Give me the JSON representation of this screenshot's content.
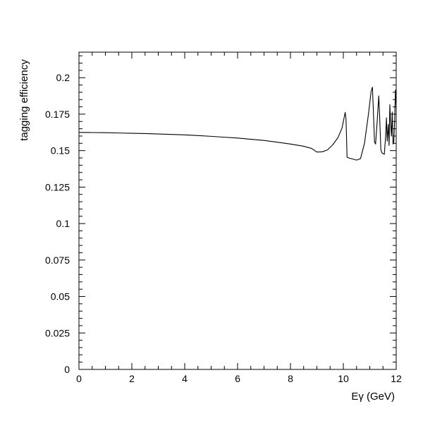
{
  "chart_data": {
    "type": "line",
    "title": "",
    "xlabel": "Eγ (GeV)",
    "ylabel": "tagging efficiency",
    "xlim": [
      0,
      12
    ],
    "ylim": [
      0,
      0.2175
    ],
    "grid": false,
    "x_ticks": [
      "0",
      "2",
      "4",
      "6",
      "8",
      "10",
      "12"
    ],
    "y_ticks": [
      "0",
      "0.025",
      "0.05",
      "0.075",
      "0.1",
      "0.125",
      "0.15",
      "0.175",
      "0.2"
    ],
    "series": [
      {
        "x": [
          0,
          0.5,
          1,
          1.5,
          2,
          2.5,
          3,
          3.5,
          4,
          4.5,
          5,
          5.5,
          6,
          6.5,
          7,
          7.5,
          8,
          8.5,
          8.8,
          9.0,
          9.2,
          9.4,
          9.6,
          9.8,
          9.95,
          10.07,
          10.1,
          10.12,
          10.14,
          10.17,
          10.3,
          10.5,
          10.65,
          10.8,
          10.95,
          11.05,
          11.1,
          11.13,
          11.18,
          11.22,
          11.28,
          11.34,
          11.37,
          11.42,
          11.46,
          11.5,
          11.55,
          11.6,
          11.63,
          11.66,
          11.7,
          11.73,
          11.76,
          11.79,
          11.82,
          11.85,
          11.88,
          11.91,
          11.94,
          11.97,
          12.0
        ],
        "y": [
          0.1625,
          0.1624,
          0.1623,
          0.1621,
          0.1619,
          0.1617,
          0.1614,
          0.1611,
          0.1608,
          0.1603,
          0.1598,
          0.1592,
          0.1586,
          0.1578,
          0.157,
          0.1558,
          0.1545,
          0.153,
          0.1515,
          0.149,
          0.1492,
          0.1505,
          0.154,
          0.159,
          0.1655,
          0.1762,
          0.172,
          0.16,
          0.1455,
          0.1452,
          0.1445,
          0.1435,
          0.1445,
          0.155,
          0.175,
          0.1905,
          0.1935,
          0.18,
          0.156,
          0.1545,
          0.17,
          0.1875,
          0.175,
          0.1505,
          0.1485,
          0.148,
          0.1475,
          0.16,
          0.1725,
          0.1565,
          0.168,
          0.1535,
          0.1815,
          0.168,
          0.16,
          0.1765,
          0.1545,
          0.156,
          0.1705,
          0.1915,
          0.18
        ]
      }
    ]
  }
}
